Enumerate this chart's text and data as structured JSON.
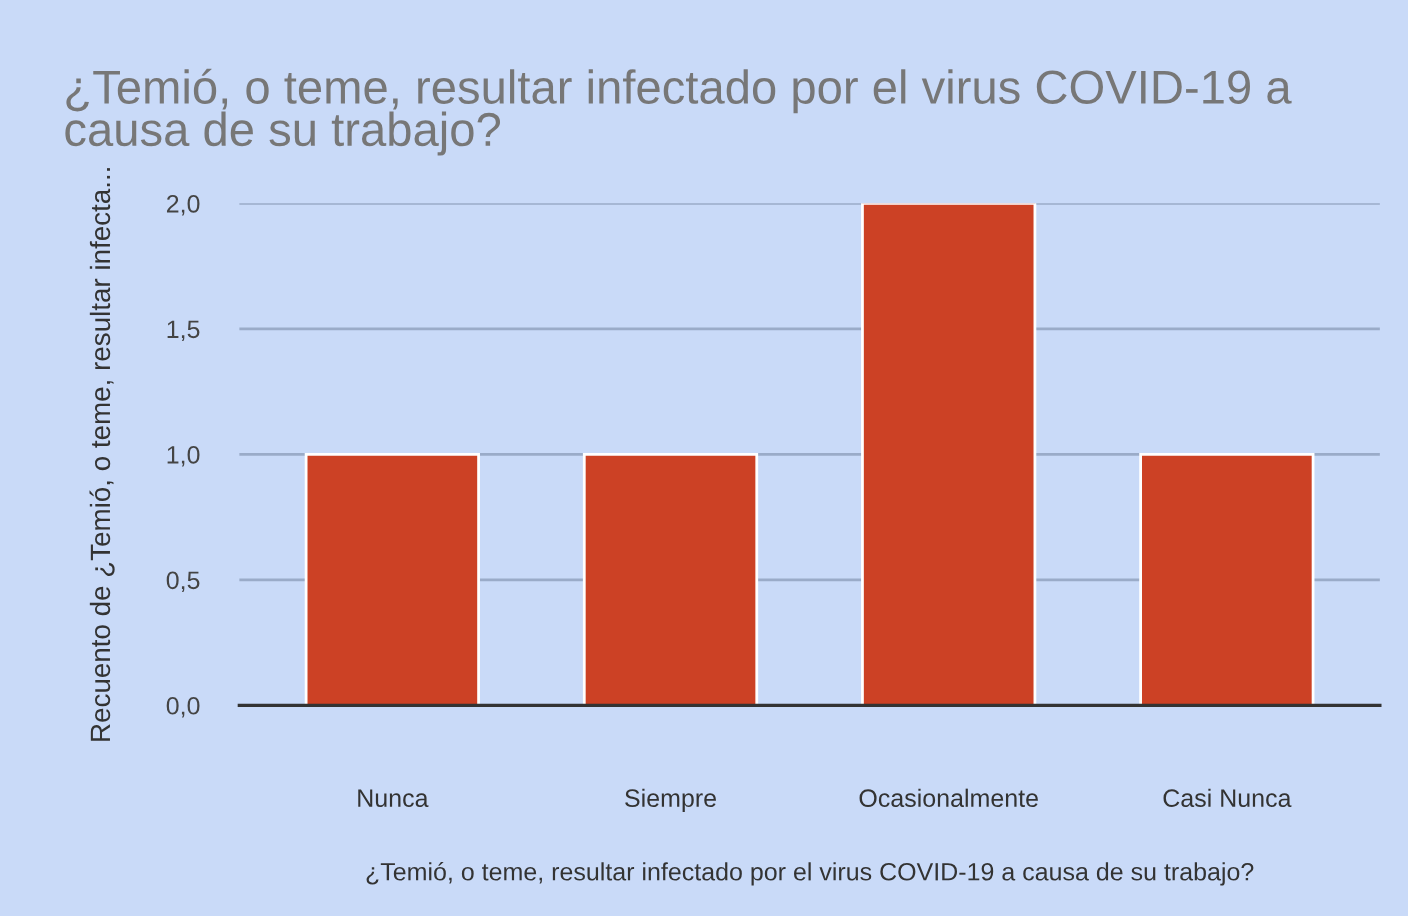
{
  "chart_data": {
    "type": "bar",
    "title": "¿Temió, o teme, resultar infectado por el virus COVID-19 a causa de su trabajo?",
    "xlabel": "¿Temió, o teme, resultar infectado por el virus COVID-19 a causa de su trabajo?",
    "ylabel": "Recuento de ¿Temió, o teme, resultar infecta...",
    "categories": [
      "Nunca",
      "Siempre",
      "Ocasionalmente",
      "Casi Nunca"
    ],
    "values": [
      1,
      1,
      2,
      1
    ],
    "color": "#cc4125",
    "ylim": [
      0,
      2
    ],
    "yticks": [
      {
        "value": 0,
        "label": "0,0"
      },
      {
        "value": 0.5,
        "label": "0,5"
      },
      {
        "value": 1,
        "label": "1,0"
      },
      {
        "value": 1.5,
        "label": "1,5"
      },
      {
        "value": 2,
        "label": "2,0"
      }
    ],
    "grid": "y"
  }
}
